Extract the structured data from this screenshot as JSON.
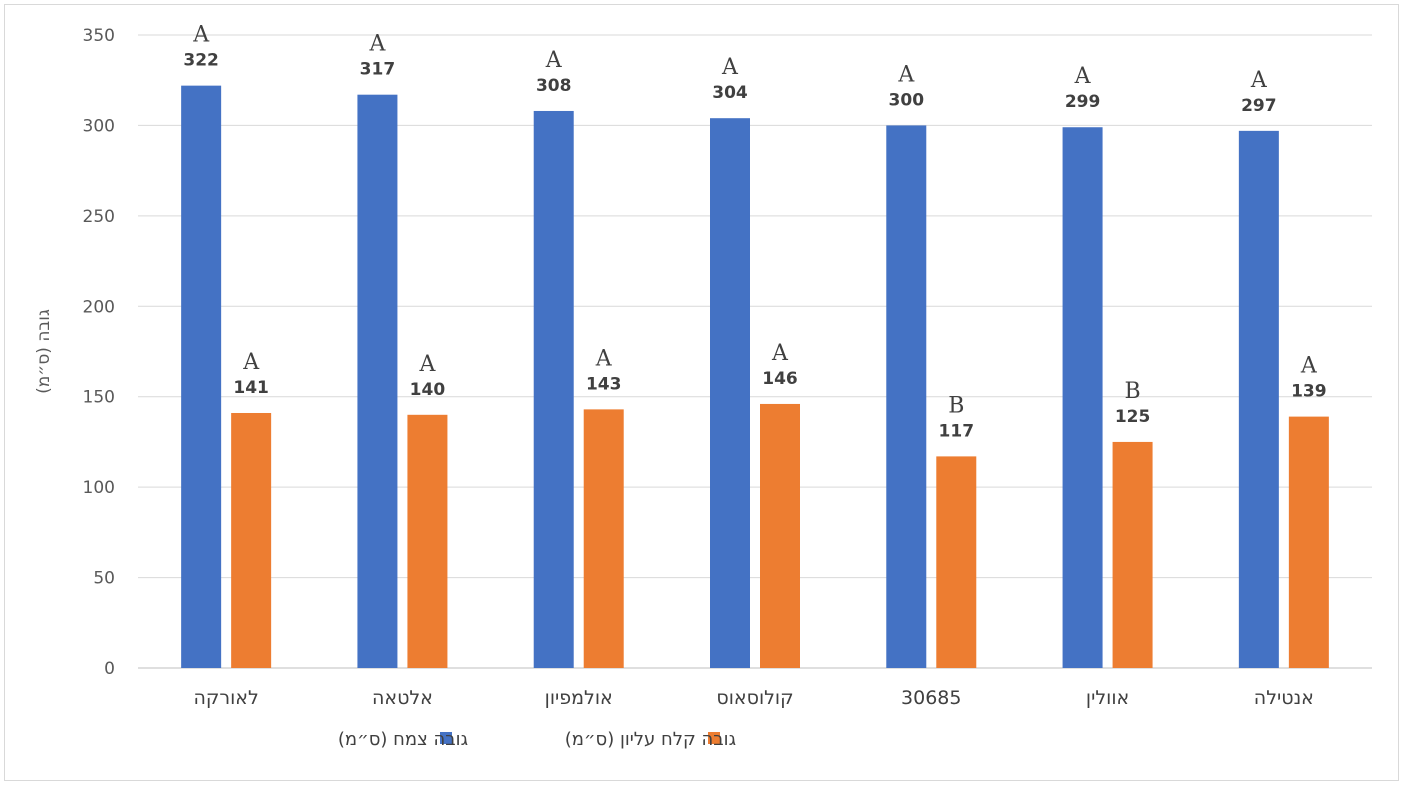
{
  "chart_data": {
    "type": "bar",
    "categories": [
      "לאורקה",
      "אלטאה",
      "אולמפיון",
      "קולוסאוס",
      "30685",
      "אוולין",
      "אנטילה"
    ],
    "series": [
      {
        "name": "גובה צמח (ס״מ)",
        "color": "#4472C4",
        "values": [
          322,
          317,
          308,
          304,
          300,
          299,
          297
        ],
        "significance": [
          "A",
          "A",
          "A",
          "A",
          "A",
          "A",
          "A"
        ]
      },
      {
        "name": "גובה קלח עליון  (ס״מ)",
        "color": "#ED7D31",
        "values": [
          141,
          140,
          143,
          146,
          117,
          125,
          139
        ],
        "significance": [
          "A",
          "A",
          "A",
          "A",
          "B",
          "B",
          "A"
        ]
      }
    ],
    "ylabel": "גובה (ס״מ)",
    "ylim": [
      0,
      350
    ],
    "yticks": [
      0,
      50,
      100,
      150,
      200,
      250,
      300,
      350
    ],
    "grid": true,
    "legend": "bottom"
  }
}
